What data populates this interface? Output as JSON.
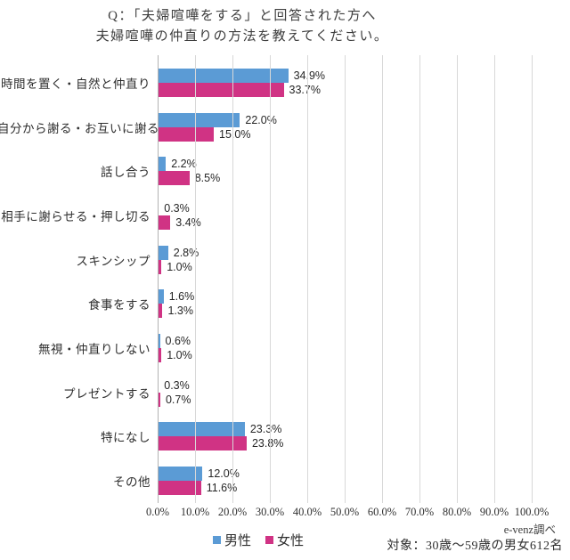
{
  "title": {
    "line1": "Q：「夫婦喧嘩をする」と回答された方へ",
    "line2": "夫婦喧嘩の仲直りの方法を教えてください。"
  },
  "chart_data": {
    "type": "bar",
    "orientation": "horizontal",
    "title": "Q：「夫婦喧嘩をする」と回答された方へ 夫婦喧嘩の仲直りの方法を教えてください。",
    "categories": [
      "時間を置く・自然と仲直り",
      "自分から謝る・お互いに謝る",
      "話し合う",
      "相手に謝らせる・押し切る",
      "スキンシップ",
      "食事をする",
      "無視・仲直りしない",
      "プレゼントする",
      "特になし",
      "その他"
    ],
    "series": [
      {
        "name": "男性",
        "color": "#5B9BD5",
        "values": [
          34.9,
          22.0,
          2.2,
          0.3,
          2.8,
          1.6,
          0.6,
          0.3,
          23.3,
          12.0
        ]
      },
      {
        "name": "女性",
        "color": "#D03384",
        "values": [
          33.7,
          15.0,
          8.5,
          3.4,
          1.0,
          1.3,
          1.0,
          0.7,
          23.8,
          11.6
        ]
      }
    ],
    "x_axis": {
      "min": 0,
      "max": 100,
      "tick_step": 10,
      "tick_labels": [
        "0.0%",
        "10.0%",
        "20.0%",
        "30.0%",
        "40.0%",
        "50.0%",
        "60.0%",
        "70.0%",
        "80.0%",
        "90.0%",
        "100.0%"
      ]
    },
    "value_label_suffix": "%",
    "grid": true,
    "legend_position": "bottom"
  },
  "footer": {
    "source": "e-venz調べ",
    "sample": "対象：30歳～59歳の男女612名"
  }
}
